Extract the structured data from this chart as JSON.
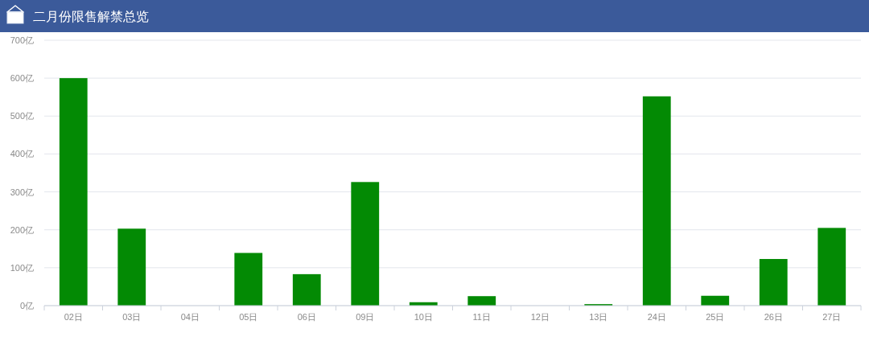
{
  "chart_data": {
    "type": "bar",
    "title": "二月份限售解禁总览",
    "categories": [
      "02日",
      "03日",
      "04日",
      "05日",
      "06日",
      "09日",
      "10日",
      "11日",
      "12日",
      "13日",
      "24日",
      "25日",
      "26日",
      "27日"
    ],
    "series": [
      {
        "color": "#038a04",
        "values": [
          600,
          203,
          0,
          139,
          83,
          326,
          9,
          25,
          0,
          4,
          552,
          26,
          123,
          205
        ]
      }
    ],
    "ylim": [
      0,
      700
    ],
    "yticks": [
      {
        "value": 0,
        "label": "0亿"
      },
      {
        "value": 100,
        "label": "100亿"
      },
      {
        "value": 200,
        "label": "200亿"
      },
      {
        "value": 300,
        "label": "300亿"
      },
      {
        "value": 400,
        "label": "400亿"
      },
      {
        "value": 500,
        "label": "500亿"
      },
      {
        "value": 600,
        "label": "600亿"
      },
      {
        "value": 700,
        "label": "700亿"
      }
    ],
    "grid": "y"
  }
}
